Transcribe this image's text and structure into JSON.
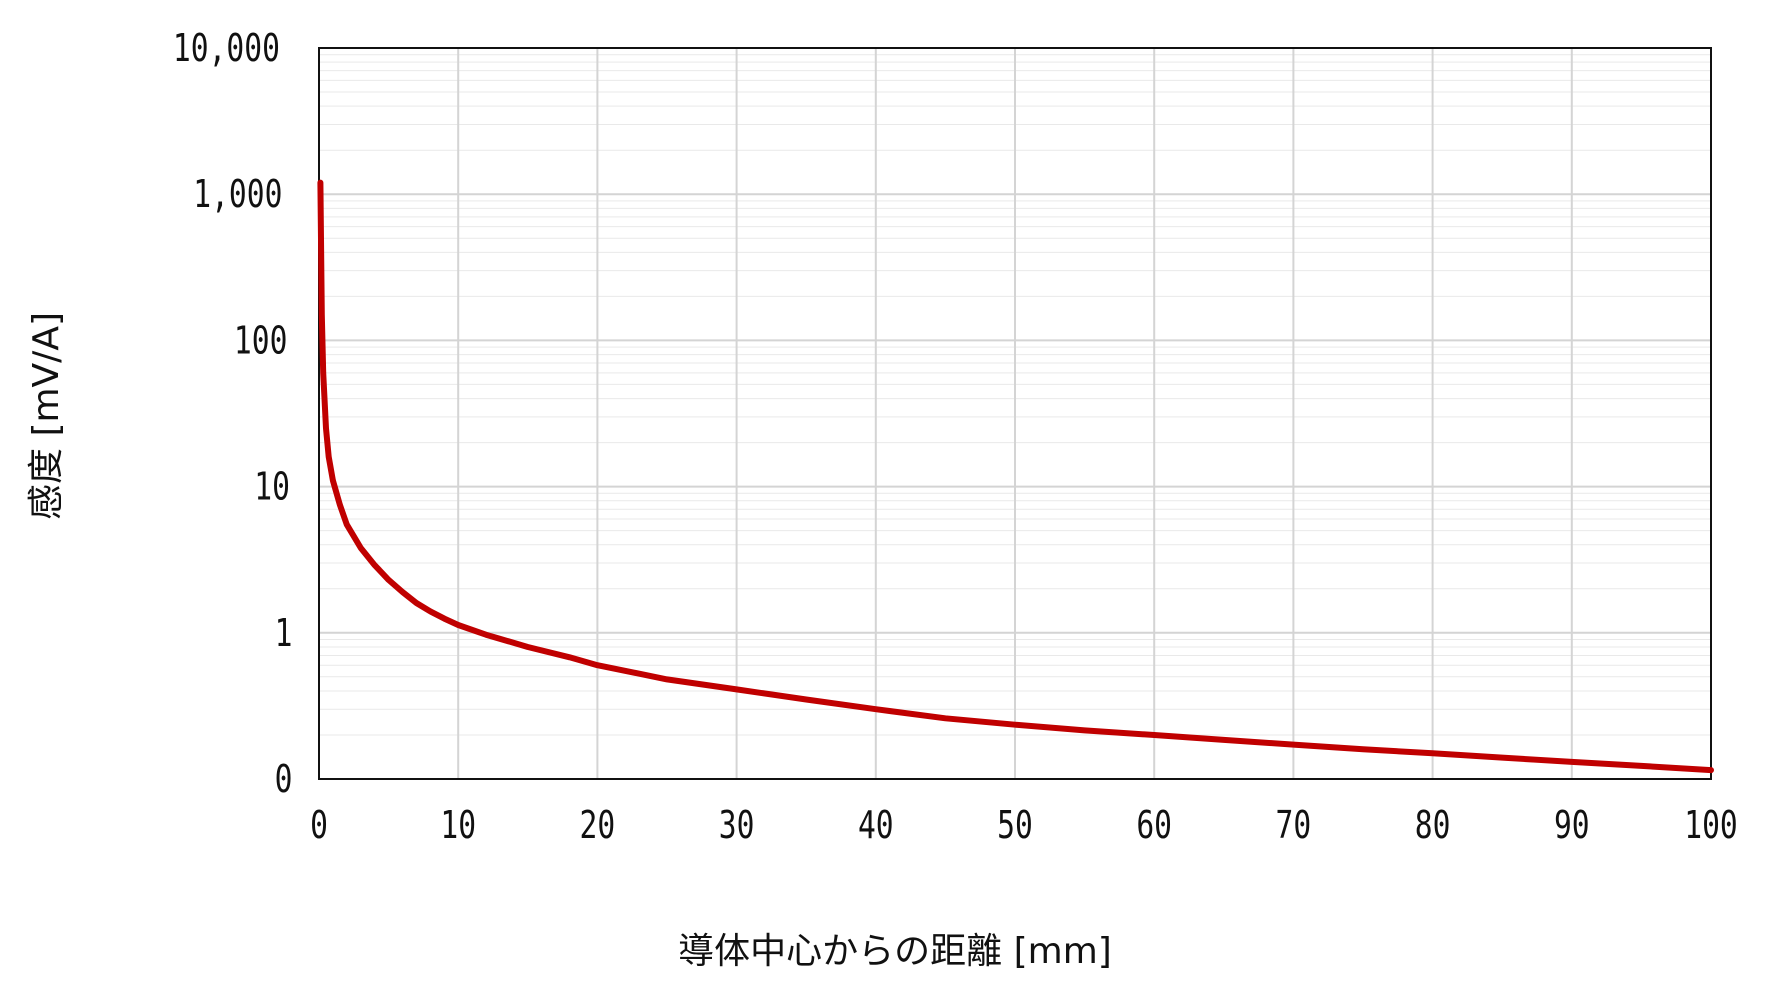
{
  "chart_data": {
    "type": "line",
    "title": "",
    "xlabel": "導体中心からの距離 [mm]",
    "ylabel": "感度 [mV/A]",
    "x_scale": "linear",
    "y_scale": "log",
    "xlim": [
      0,
      100
    ],
    "ylim": [
      0.1,
      10000
    ],
    "grid": true,
    "legend": "none",
    "x_ticks": [
      "0",
      "10",
      "20",
      "30",
      "40",
      "50",
      "60",
      "70",
      "80",
      "90",
      "100"
    ],
    "y_ticks": [
      {
        "value": 0.1,
        "label": "0"
      },
      {
        "value": 1,
        "label": "1"
      },
      {
        "value": 10,
        "label": "10"
      },
      {
        "value": 100,
        "label": "100"
      },
      {
        "value": 1000,
        "label": "1,000"
      },
      {
        "value": 10000,
        "label": "10,000"
      }
    ],
    "series": [
      {
        "color": "#c00000",
        "x": [
          0.1,
          0.2,
          0.3,
          0.5,
          0.7,
          1,
          1.5,
          2,
          3,
          4,
          5,
          6,
          7,
          8,
          9,
          10,
          12,
          15,
          18,
          20,
          25,
          30,
          35,
          40,
          45,
          50,
          55,
          60,
          65,
          70,
          75,
          80,
          85,
          90,
          95,
          100
        ],
        "y": [
          1200,
          150,
          60,
          25,
          16,
          11,
          7.5,
          5.5,
          3.8,
          2.9,
          2.3,
          1.9,
          1.6,
          1.4,
          1.25,
          1.13,
          0.97,
          0.8,
          0.68,
          0.6,
          0.48,
          0.41,
          0.35,
          0.3,
          0.26,
          0.235,
          0.215,
          0.2,
          0.185,
          0.172,
          0.16,
          0.15,
          0.14,
          0.131,
          0.123,
          0.115
        ]
      }
    ]
  }
}
